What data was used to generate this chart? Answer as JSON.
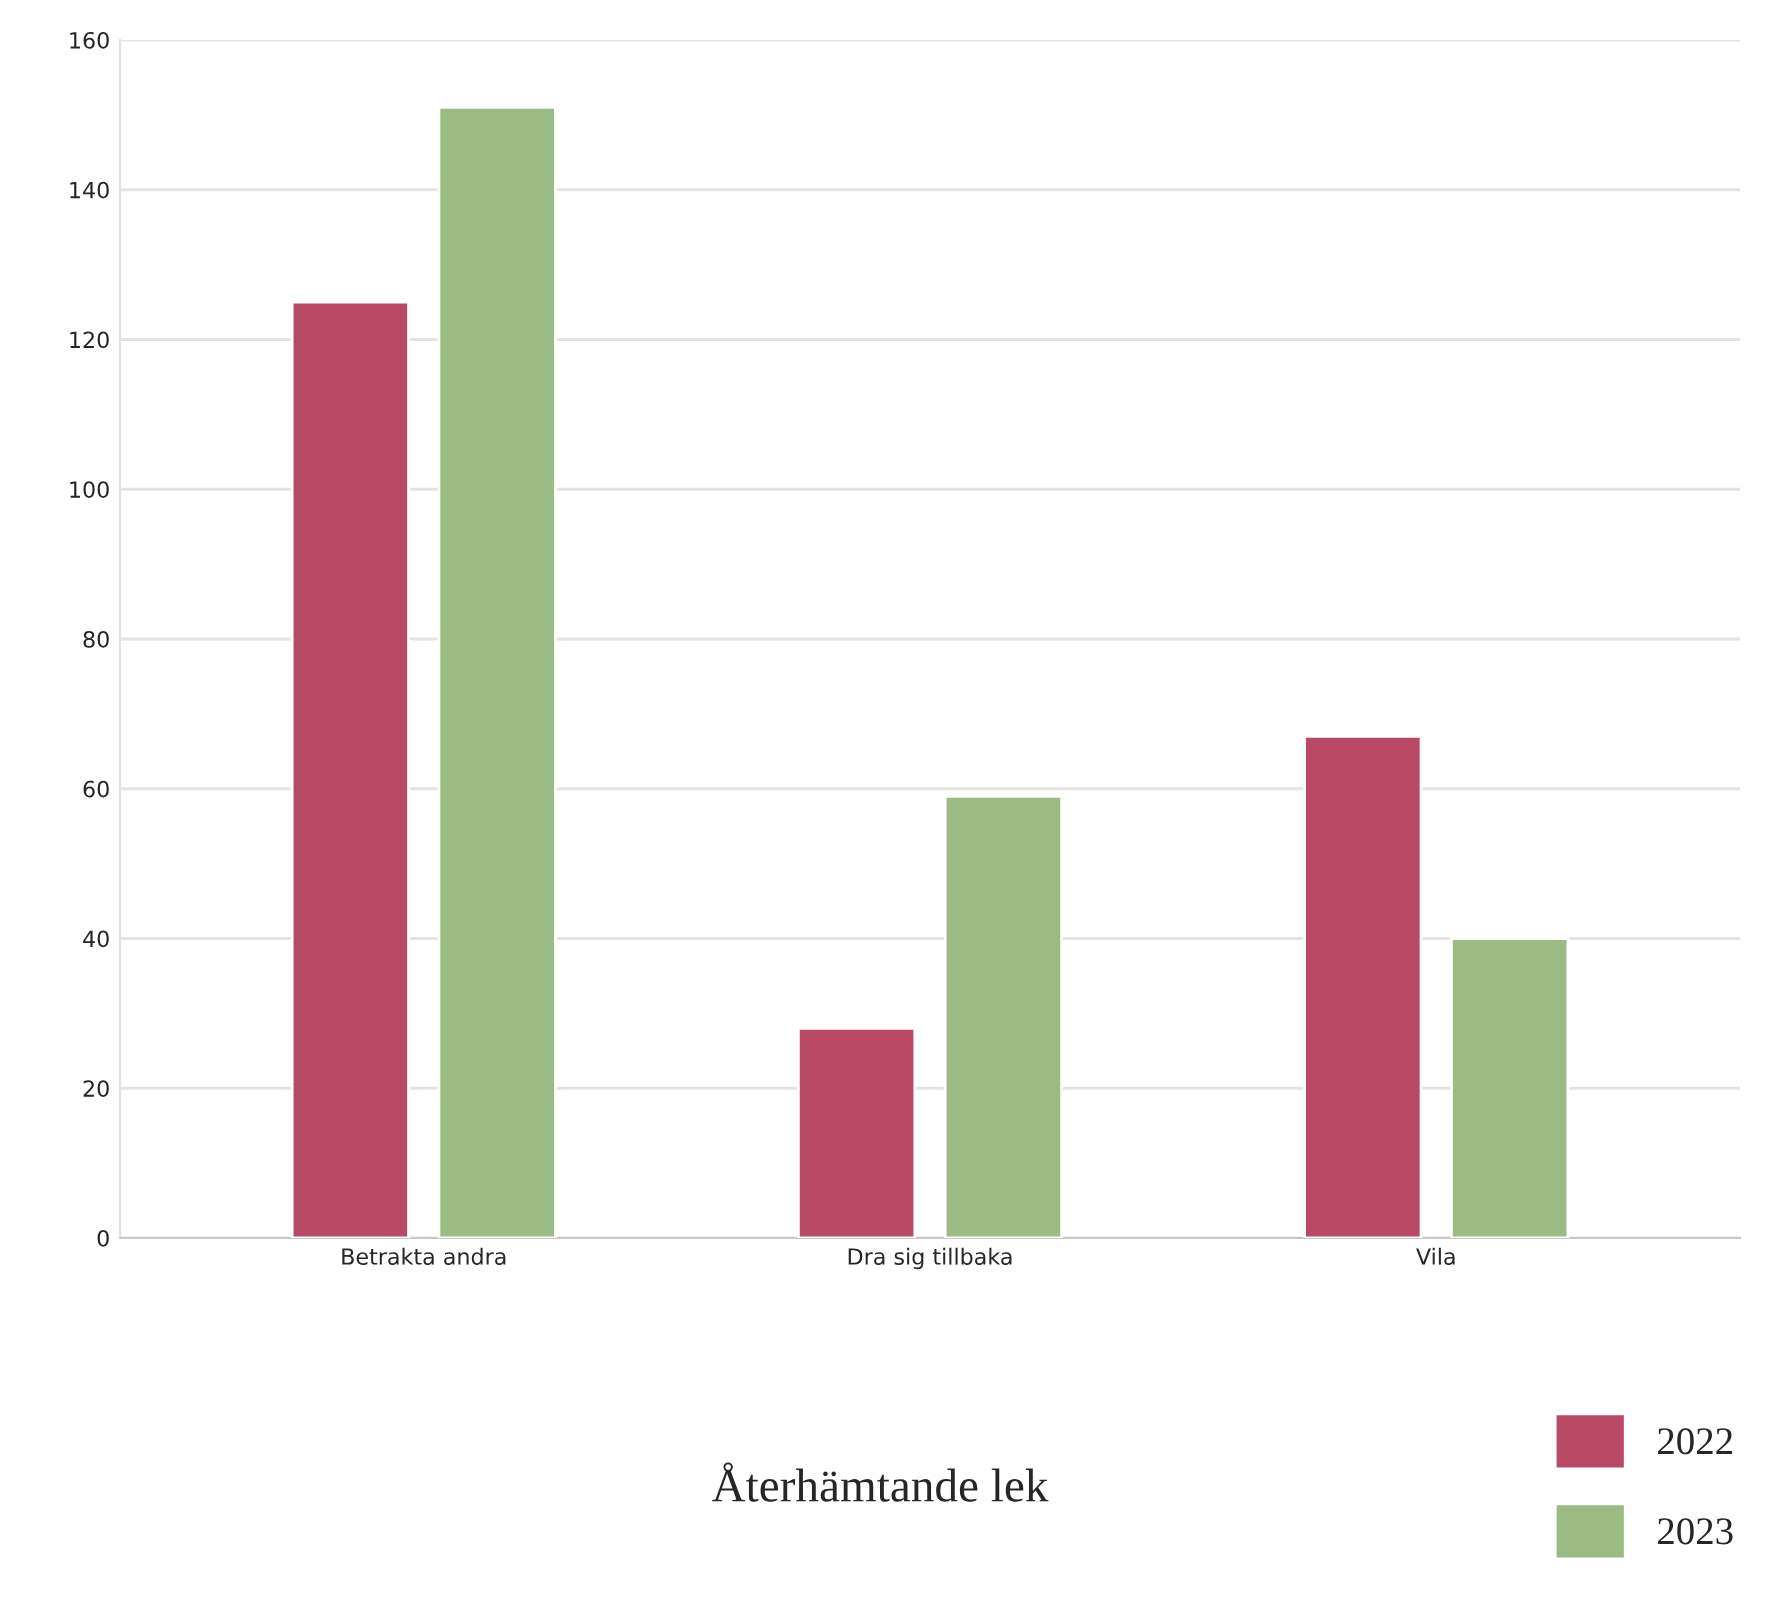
{
  "chart_data": {
    "type": "bar",
    "title": "Återhämtande lek",
    "categories": [
      "Betrakta andra",
      "Dra sig tillbaka",
      "Vila"
    ],
    "series": [
      {
        "name": "2022",
        "color": "#b94a66",
        "values": [
          125,
          28,
          67
        ]
      },
      {
        "name": "2023",
        "color": "#9bbb84",
        "values": [
          151,
          59,
          40
        ]
      }
    ],
    "ylim": [
      0,
      160
    ],
    "yticks": [
      0,
      20,
      40,
      60,
      80,
      100,
      120,
      140,
      160
    ],
    "grid": "y",
    "legend": "bottom right"
  }
}
